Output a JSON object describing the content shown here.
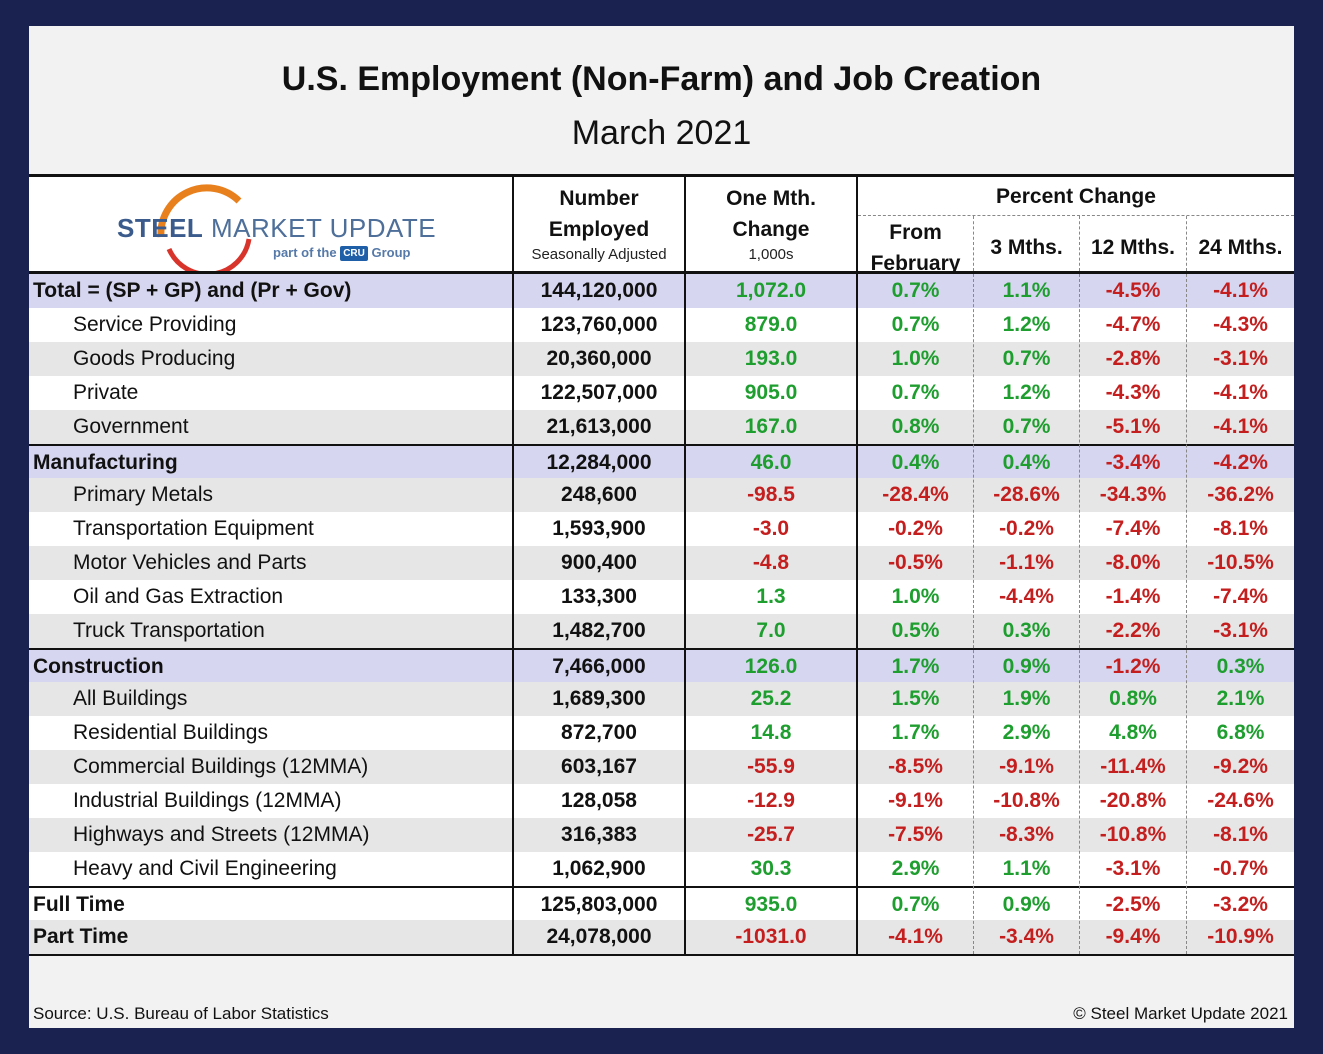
{
  "title": "U.S. Employment (Non-Farm) and Job Creation",
  "subtitle": "March 2021",
  "logo": {
    "brand1": "STEEL",
    "brand2": " MARKET UPDATE",
    "sub": "part of the",
    "cru": "CRU",
    "group": "Group"
  },
  "headers": {
    "number_line1": "Number",
    "number_line2": "Employed",
    "number_small": "Seasonally Adjusted",
    "change_line1": "One Mth.",
    "change_line2": "Change",
    "change_small": "1,000s",
    "percent_change": "Percent Change",
    "from_line1": "From",
    "from_line2": "February",
    "m3": "3 Mths.",
    "m12": "12 Mths.",
    "m24": "24 Mths."
  },
  "rows": [
    {
      "label": "Total = (SP + GP) and (Pr + Gov)",
      "number": "144,120,000",
      "change": "1,072.0",
      "feb": "0.7%",
      "m3": "1.1%",
      "m12": "-4.5%",
      "m24": "-4.1%"
    },
    {
      "label": "Service Providing",
      "number": "123,760,000",
      "change": "879.0",
      "feb": "0.7%",
      "m3": "1.2%",
      "m12": "-4.7%",
      "m24": "-4.3%"
    },
    {
      "label": "Goods Producing",
      "number": "20,360,000",
      "change": "193.0",
      "feb": "1.0%",
      "m3": "0.7%",
      "m12": "-2.8%",
      "m24": "-3.1%"
    },
    {
      "label": "Private",
      "number": "122,507,000",
      "change": "905.0",
      "feb": "0.7%",
      "m3": "1.2%",
      "m12": "-4.3%",
      "m24": "-4.1%"
    },
    {
      "label": "Government",
      "number": "21,613,000",
      "change": "167.0",
      "feb": "0.8%",
      "m3": "0.7%",
      "m12": "-5.1%",
      "m24": "-4.1%"
    },
    {
      "label": "Manufacturing",
      "number": "12,284,000",
      "change": "46.0",
      "feb": "0.4%",
      "m3": "0.4%",
      "m12": "-3.4%",
      "m24": "-4.2%"
    },
    {
      "label": "Primary Metals",
      "number": "248,600",
      "change": "-98.5",
      "feb": "-28.4%",
      "m3": "-28.6%",
      "m12": "-34.3%",
      "m24": "-36.2%"
    },
    {
      "label": "Transportation Equipment",
      "number": "1,593,900",
      "change": "-3.0",
      "feb": "-0.2%",
      "m3": "-0.2%",
      "m12": "-7.4%",
      "m24": "-8.1%"
    },
    {
      "label": "Motor Vehicles and Parts",
      "number": "900,400",
      "change": "-4.8",
      "feb": "-0.5%",
      "m3": "-1.1%",
      "m12": "-8.0%",
      "m24": "-10.5%"
    },
    {
      "label": "Oil and Gas Extraction",
      "number": "133,300",
      "change": "1.3",
      "feb": "1.0%",
      "m3": "-4.4%",
      "m12": "-1.4%",
      "m24": "-7.4%"
    },
    {
      "label": "Truck Transportation",
      "number": "1,482,700",
      "change": "7.0",
      "feb": "0.5%",
      "m3": "0.3%",
      "m12": "-2.2%",
      "m24": "-3.1%"
    },
    {
      "label": "Construction",
      "number": "7,466,000",
      "change": "126.0",
      "feb": "1.7%",
      "m3": "0.9%",
      "m12": "-1.2%",
      "m24": "0.3%"
    },
    {
      "label": "All Buildings",
      "number": "1,689,300",
      "change": "25.2",
      "feb": "1.5%",
      "m3": "1.9%",
      "m12": "0.8%",
      "m24": "2.1%"
    },
    {
      "label": "Residential Buildings",
      "number": "872,700",
      "change": "14.8",
      "feb": "1.7%",
      "m3": "2.9%",
      "m12": "4.8%",
      "m24": "6.8%"
    },
    {
      "label": "Commercial Buildings (12MMA)",
      "number": "603,167",
      "change": "-55.9",
      "feb": "-8.5%",
      "m3": "-9.1%",
      "m12": "-11.4%",
      "m24": "-9.2%"
    },
    {
      "label": "Industrial Buildings (12MMA)",
      "number": "128,058",
      "change": "-12.9",
      "feb": "-9.1%",
      "m3": "-10.8%",
      "m12": "-20.8%",
      "m24": "-24.6%"
    },
    {
      "label": "Highways and Streets (12MMA)",
      "number": "316,383",
      "change": "-25.7",
      "feb": "-7.5%",
      "m3": "-8.3%",
      "m12": "-10.8%",
      "m24": "-8.1%"
    },
    {
      "label": "Heavy and Civil Engineering",
      "number": "1,062,900",
      "change": "30.3",
      "feb": "2.9%",
      "m3": "1.1%",
      "m12": "-3.1%",
      "m24": "-0.7%"
    },
    {
      "label": "Full Time",
      "number": "125,803,000",
      "change": "935.0",
      "feb": "0.7%",
      "m3": "0.9%",
      "m12": "-2.5%",
      "m24": "-3.2%"
    },
    {
      "label": "Part Time",
      "number": "24,078,000",
      "change": "-1031.0",
      "feb": "-4.1%",
      "m3": "-3.4%",
      "m12": "-9.4%",
      "m24": "-10.9%"
    }
  ],
  "source": "Source: U.S. Bureau of Labor Statistics",
  "copyright": "© Steel Market Update 2021",
  "colors": {
    "positive": "#1e9e2e",
    "negative": "#c41e1e",
    "group_row": "#d6d6f0",
    "frame": "#1a2350"
  }
}
